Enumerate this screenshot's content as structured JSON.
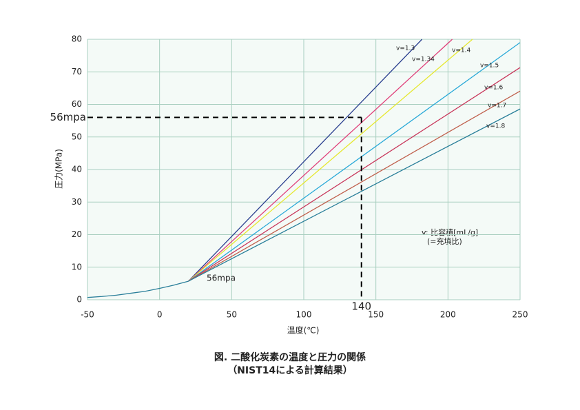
{
  "chart_data": {
    "type": "line",
    "title": "図. 二酸化炭素の温度と圧力の関係",
    "subtitle": "（NIST14による計算結果）",
    "x_label": "温度(℃)",
    "y_label": "圧力(MPa)",
    "xlim": [
      -50,
      250
    ],
    "xticks": [
      -50,
      0,
      50,
      100,
      150,
      200,
      250
    ],
    "ylim": [
      0,
      80
    ],
    "yticks": [
      0,
      10,
      20,
      30,
      40,
      50,
      60,
      70,
      80
    ],
    "grid": true,
    "series": [
      {
        "color": "#2a7f9a",
        "x": [
          -50,
          -40,
          -30,
          -20,
          -10,
          0,
          10,
          20
        ],
        "values": [
          0.7,
          1.0,
          1.4,
          2.0,
          2.6,
          3.5,
          4.5,
          5.7
        ]
      },
      {
        "name": "v=1.3",
        "color": "#2a3f8f",
        "x": [
          20,
          182
        ],
        "values": [
          5.7,
          80
        ]
      },
      {
        "name": "v=1.34",
        "color": "#e0407a",
        "x": [
          20,
          203
        ],
        "values": [
          5.7,
          80
        ]
      },
      {
        "name": "v=1.4",
        "color": "#e6e830",
        "x": [
          20,
          217
        ],
        "values": [
          5.7,
          80
        ]
      },
      {
        "name": "v=1.5",
        "color": "#29a9d8",
        "x": [
          20,
          250
        ],
        "values": [
          5.7,
          79
        ]
      },
      {
        "name": "v=1.6",
        "color": "#c8365a",
        "x": [
          20,
          250
        ],
        "values": [
          5.7,
          71.3
        ]
      },
      {
        "name": "v=1.7",
        "color": "#c0604d",
        "x": [
          20,
          250
        ],
        "values": [
          5.7,
          64.1
        ]
      },
      {
        "name": "v=1.8",
        "color": "#2a7f9a",
        "x": [
          20,
          250
        ],
        "values": [
          5.7,
          58.6
        ]
      }
    ],
    "guides": {
      "x": 140,
      "y": 56,
      "y_label": "56mpa"
    },
    "annotations": [
      "v: 比容積[mL/g]",
      "(=充填比)",
      "56mpa"
    ]
  }
}
